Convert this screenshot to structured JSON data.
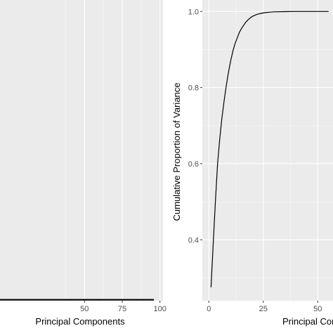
{
  "chart_data": [
    {
      "type": "line",
      "panel": "left",
      "title": "",
      "xlabel": "Principal Components",
      "ylabel": "",
      "xlim": [
        -6,
        102
      ],
      "ylim": [
        0,
        1
      ],
      "x_ticks": [
        50,
        75,
        100
      ],
      "x_tick_labels": [
        "50",
        "75",
        "100"
      ],
      "grid": true,
      "series": [
        {
          "x": [
            -6,
            96
          ],
          "y": [
            0.003,
            0.003
          ]
        }
      ]
    },
    {
      "type": "line",
      "panel": "right",
      "title": "",
      "xlabel": "Principal Components",
      "ylabel": "Cumulative Proportion of Variance",
      "xlim": [
        -3,
        57
      ],
      "ylim": [
        0.24,
        1.03
      ],
      "x_ticks": [
        0,
        25,
        50
      ],
      "x_tick_labels": [
        "0",
        "25",
        "50"
      ],
      "y_ticks": [
        0.4,
        0.6,
        0.8,
        1.0
      ],
      "y_tick_labels": [
        "0.4",
        "0.6",
        "0.8",
        "1.0"
      ],
      "grid": true,
      "series": [
        {
          "x": [
            1,
            2,
            3,
            4,
            5,
            6,
            7,
            8,
            9,
            10,
            11,
            12,
            13,
            14,
            15,
            16,
            17,
            18,
            19,
            20,
            22,
            24,
            26,
            28,
            30,
            35,
            40,
            45,
            50,
            55
          ],
          "y": [
            0.275,
            0.39,
            0.5,
            0.6,
            0.665,
            0.72,
            0.765,
            0.805,
            0.84,
            0.87,
            0.895,
            0.915,
            0.93,
            0.945,
            0.955,
            0.964,
            0.972,
            0.978,
            0.983,
            0.987,
            0.992,
            0.995,
            0.997,
            0.998,
            0.999,
            0.9995,
            1.0,
            1.0,
            1.0,
            1.0
          ]
        }
      ]
    }
  ]
}
